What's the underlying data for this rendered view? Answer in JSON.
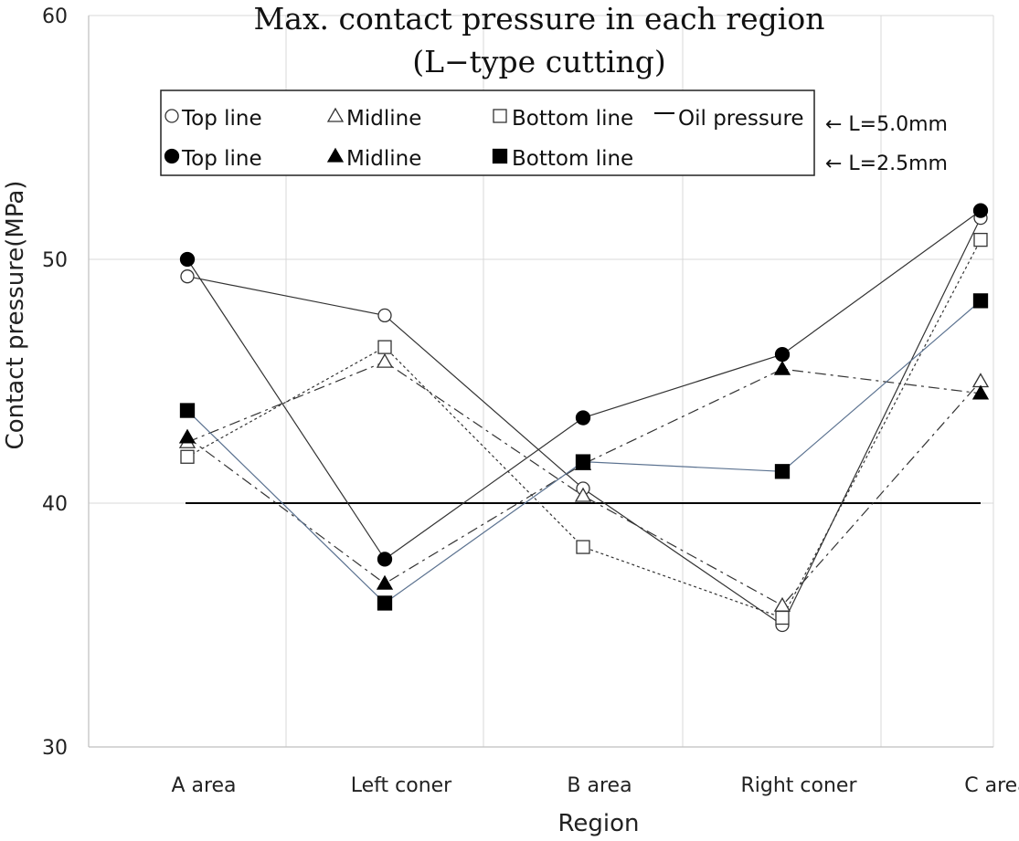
{
  "chart_data": {
    "type": "line",
    "title": "Max. contact pressure in each region",
    "subtitle": "(L−type cutting)",
    "xlabel": "Region",
    "ylabel": "Contact pressure(MPa)",
    "ylim": [
      30,
      60
    ],
    "yticks": [
      "30",
      "40",
      "50",
      "60"
    ],
    "categories": [
      "A area",
      "Left coner",
      "B area",
      "Right coner",
      "C area"
    ],
    "grid": true,
    "series": [
      {
        "name": "Top line",
        "group": "L=5.0mm",
        "marker": "circle-open",
        "line": "solid",
        "color": "#333333",
        "values": [
          49.3,
          47.7,
          40.6,
          35.0,
          51.7
        ]
      },
      {
        "name": "Midline",
        "group": "L=5.0mm",
        "marker": "triangle-open",
        "line": "dashdot",
        "color": "#333333",
        "values": [
          42.5,
          45.8,
          40.3,
          35.8,
          45.0
        ]
      },
      {
        "name": "Bottom line",
        "group": "L=5.0mm",
        "marker": "square-open",
        "line": "dotted",
        "color": "#333333",
        "values": [
          41.9,
          46.4,
          38.2,
          35.3,
          50.8
        ]
      },
      {
        "name": "Top line",
        "group": "L=2.5mm",
        "marker": "circle-filled",
        "line": "solid",
        "color": "#333333",
        "values": [
          50.0,
          37.7,
          43.5,
          46.1,
          52.0
        ]
      },
      {
        "name": "Midline",
        "group": "L=2.5mm",
        "marker": "triangle-filled",
        "line": "dashdot",
        "color": "#333333",
        "values": [
          42.7,
          36.7,
          41.6,
          45.5,
          44.5
        ]
      },
      {
        "name": "Bottom line",
        "group": "L=2.5mm",
        "marker": "square-filled",
        "line": "solid",
        "color": "#5b7290",
        "values": [
          43.8,
          35.9,
          41.7,
          41.3,
          48.3
        ]
      }
    ],
    "reference_line": {
      "name": "Oil pressure",
      "value": 40
    },
    "legend": {
      "placement": "top",
      "rows": [
        [
          "Top line",
          "Midline",
          "Bottom line",
          "Oil pressure"
        ],
        [
          "Top line",
          "Midline",
          "Bottom line"
        ]
      ],
      "row_annotations": [
        "← L=5.0mm",
        "← L=2.5mm"
      ]
    }
  }
}
